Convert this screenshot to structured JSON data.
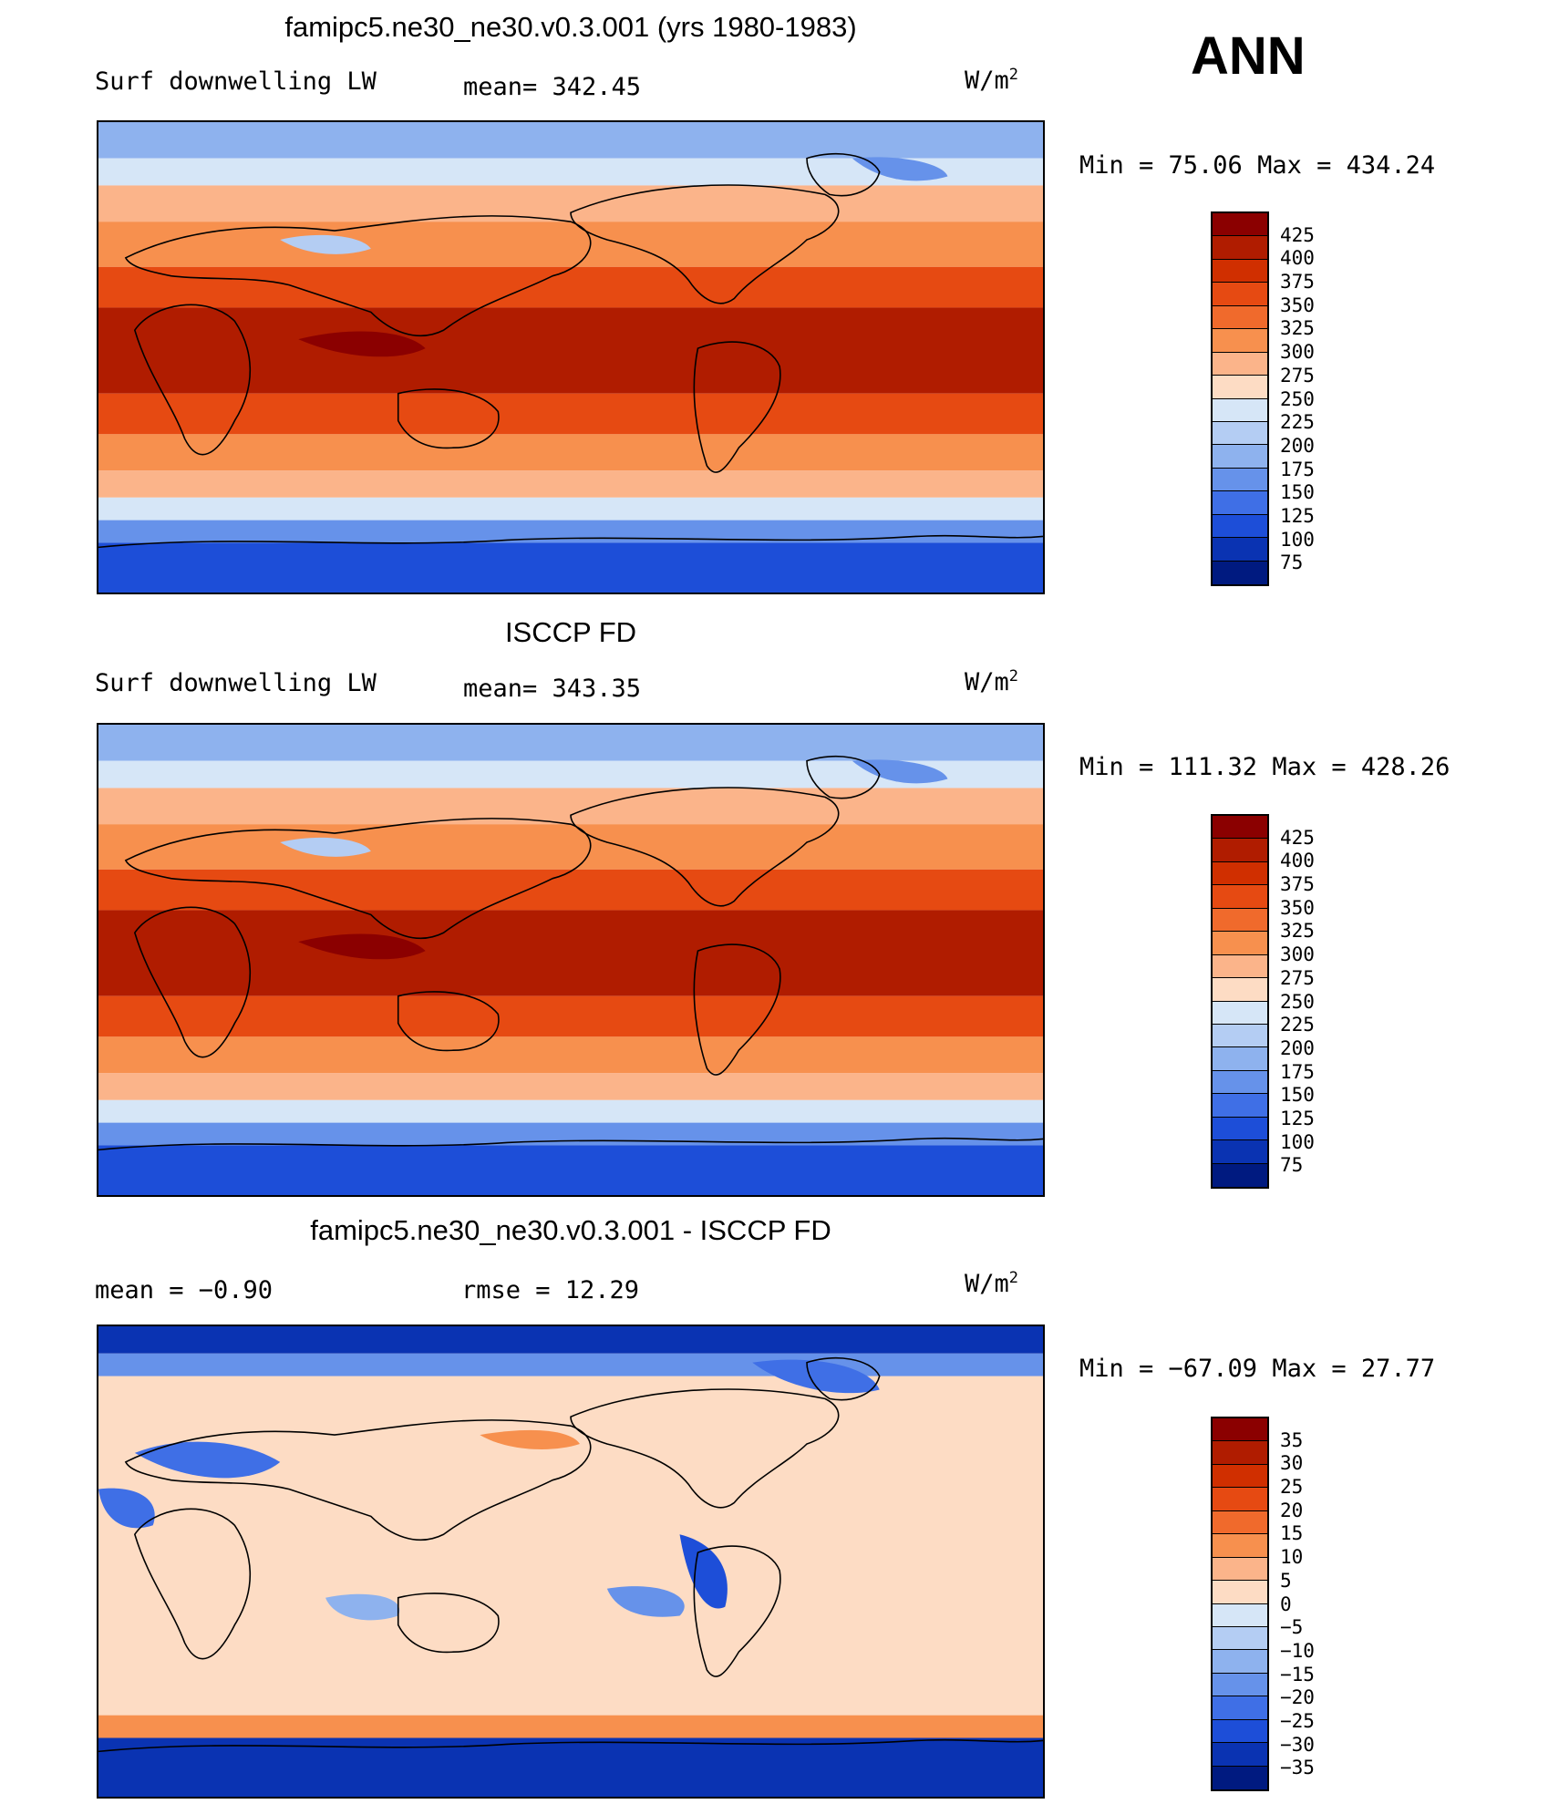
{
  "header": {
    "annotation": "ANN"
  },
  "panels": [
    {
      "id": "model",
      "title": "famipc5.ne30_ne30.v0.3.001 (yrs 1980-1983)",
      "left_label": "Surf downwelling LW",
      "center_label": "mean= 342.45",
      "units_prefix": "W/m",
      "units_sup": "2",
      "minmax": "Min =  75.06 Max = 434.24",
      "colorbar_ticks": [
        "425",
        "400",
        "375",
        "350",
        "325",
        "300",
        "275",
        "250",
        "225",
        "200",
        "175",
        "150",
        "125",
        "100",
        "75"
      ]
    },
    {
      "id": "obs",
      "title": "ISCCP FD",
      "left_label": "Surf downwelling LW",
      "center_label": "mean= 343.35",
      "units_prefix": "W/m",
      "units_sup": "2",
      "minmax": "Min = 111.32 Max = 428.26",
      "colorbar_ticks": [
        "425",
        "400",
        "375",
        "350",
        "325",
        "300",
        "275",
        "250",
        "225",
        "200",
        "175",
        "150",
        "125",
        "100",
        "75"
      ]
    },
    {
      "id": "diff",
      "title": "famipc5.ne30_ne30.v0.3.001 - ISCCP FD",
      "left_label": "mean =   −0.90",
      "center_label": "rmse =   12.29",
      "units_prefix": "W/m",
      "units_sup": "2",
      "minmax": "Min = −67.09 Max =  27.77",
      "colorbar_ticks": [
        "35",
        "30",
        "25",
        "20",
        "15",
        "10",
        "5",
        "0",
        "−5",
        "−10",
        "−15",
        "−20",
        "−25",
        "−30",
        "−35"
      ]
    }
  ],
  "colors": {
    "level_palette": [
      "#8b0000",
      "#b01c00",
      "#d02f00",
      "#e64a12",
      "#f06a2c",
      "#f7904e",
      "#fbb48a",
      "#fddcc4",
      "#d6e6f7",
      "#b4cdf3",
      "#8eb2ee",
      "#6692ea",
      "#3f6fe6",
      "#1d4ed8",
      "#0a33b2",
      "#001a80"
    ],
    "coast": "#000000"
  }
}
